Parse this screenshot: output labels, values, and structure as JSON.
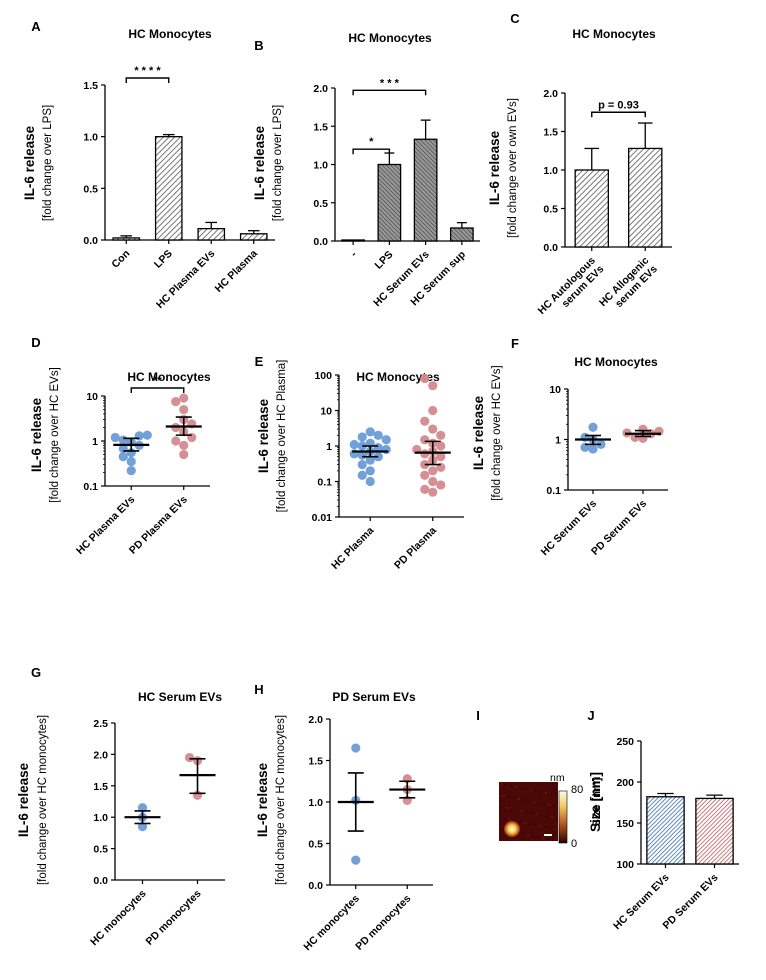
{
  "figure": {
    "panel_letters": [
      "A",
      "B",
      "C",
      "D",
      "E",
      "F",
      "G",
      "H",
      "I",
      "J"
    ]
  },
  "colors": {
    "blue": "#6a9bd6",
    "red": "#d48a8e",
    "gray": "#888888",
    "bar_edge": "#000000"
  },
  "chart_data": [
    {
      "panel": "A",
      "type": "bar",
      "pattern": "hatch",
      "title": "HC Monocytes",
      "ylabel": "IL-6 release",
      "ylabel_sub": "[fold change over LPS]",
      "categories": [
        "Con",
        "LPS",
        "HC Plasma EVs",
        "HC Plasma"
      ],
      "values": [
        0.02,
        1.0,
        0.11,
        0.06
      ],
      "errors": [
        0.02,
        0.02,
        0.06,
        0.03
      ],
      "ylim": [
        0,
        1.5
      ],
      "yticks": [
        "0.0",
        "0.5",
        "1.0",
        "1.5"
      ],
      "ytick_values": [
        0,
        0.5,
        1.0,
        1.5
      ],
      "annotations": [
        {
          "from": 0,
          "to": 1,
          "label": "* * * *"
        }
      ]
    },
    {
      "panel": "B",
      "type": "bar",
      "pattern": "hatch",
      "title": "HC Monocytes",
      "ylabel": "IL-6 release",
      "ylabel_sub": "[fold change over LPS]",
      "categories": [
        "-",
        "LPS",
        "HC Serum EVs",
        "HC Serum sup"
      ],
      "values": [
        0.0,
        1.0,
        1.33,
        0.17
      ],
      "errors": [
        0.01,
        0.15,
        0.25,
        0.07
      ],
      "ylim": [
        0,
        2.0
      ],
      "yticks": [
        "0.0",
        "0.5",
        "1.0",
        "1.5",
        "2.0"
      ],
      "ytick_values": [
        0,
        0.5,
        1.0,
        1.5,
        2.0
      ],
      "annotations": [
        {
          "from": 0,
          "to": 1,
          "label": "*"
        },
        {
          "from": 0,
          "to": 2,
          "label": "* * *"
        }
      ]
    },
    {
      "panel": "C",
      "type": "bar",
      "pattern": "hatch",
      "title": "HC Monocytes",
      "ylabel": "IL-6 release",
      "ylabel_sub": "[fold change over own EVs]",
      "categories": [
        "HC Autologous serum EVs",
        "HC Allogenic serum EVs"
      ],
      "category_lines": [
        [
          "HC Autologous",
          "serum EVs"
        ],
        [
          "HC Allogenic",
          "serum EVs"
        ]
      ],
      "values": [
        1.0,
        1.28
      ],
      "errors": [
        0.28,
        0.33
      ],
      "ylim": [
        0,
        2.0
      ],
      "yticks": [
        "0.0",
        "0.5",
        "1.0",
        "1.5",
        "2.0"
      ],
      "ytick_values": [
        0,
        0.5,
        1.0,
        1.5,
        2.0
      ],
      "annotations": [
        {
          "from": 0,
          "to": 1,
          "label": "p = 0.93"
        }
      ]
    },
    {
      "panel": "D",
      "type": "scatter",
      "scale": "log",
      "title": "HC Monocytes",
      "ylabel": "IL-6 release",
      "ylabel_sub": "[fold change over HC EVs]",
      "categories": [
        "HC Plasma EVs",
        "PD Plasma EVs"
      ],
      "ylim": [
        0.1,
        10
      ],
      "yticks": [
        "0.1",
        "1",
        "10"
      ],
      "ytick_values": [
        0.1,
        1,
        10
      ],
      "groups": [
        {
          "color": "blue",
          "mean": 0.82,
          "sem": [
            0.6,
            1.15
          ],
          "points": [
            0.22,
            0.35,
            0.45,
            0.55,
            0.68,
            0.8,
            0.95,
            1.05,
            1.2,
            1.3,
            1.35
          ]
        },
        {
          "color": "red",
          "mean": 2.1,
          "sem": [
            1.35,
            3.4
          ],
          "points": [
            0.5,
            0.8,
            1.0,
            1.2,
            1.6,
            2.0,
            2.4,
            3.0,
            5.0,
            7.5,
            9.0
          ]
        }
      ],
      "annotations": [
        {
          "from": 0,
          "to": 1,
          "label": "**"
        }
      ]
    },
    {
      "panel": "E",
      "type": "scatter",
      "scale": "log",
      "title": "HC Monocytes",
      "ylabel": "IL-6 release",
      "ylabel_sub": "[fold change over HC Plasma]",
      "categories": [
        "HC Plasma",
        "PD Plasma"
      ],
      "ylim": [
        0.01,
        100
      ],
      "yticks": [
        "0.01",
        "0.1",
        "1",
        "10",
        "100"
      ],
      "ytick_values": [
        0.01,
        0.1,
        1,
        10,
        100
      ],
      "groups": [
        {
          "color": "blue",
          "mean": 0.7,
          "sem": [
            0.5,
            1.0
          ],
          "points": [
            0.1,
            0.15,
            0.2,
            0.3,
            0.4,
            0.5,
            0.55,
            0.6,
            0.7,
            0.8,
            0.9,
            1.0,
            1.1,
            1.2,
            1.5,
            1.8,
            2.0,
            2.5
          ]
        },
        {
          "color": "red",
          "mean": 0.65,
          "sem": [
            0.3,
            1.35
          ],
          "points": [
            0.05,
            0.06,
            0.08,
            0.1,
            0.15,
            0.2,
            0.25,
            0.3,
            0.4,
            0.5,
            0.6,
            0.7,
            0.8,
            1.0,
            1.2,
            1.5,
            2.0,
            3.0,
            5.0,
            10.0,
            50.0,
            80.0
          ]
        }
      ],
      "annotations": []
    },
    {
      "panel": "F",
      "type": "scatter",
      "scale": "log",
      "title": "HC Monocytes",
      "ylabel": "IL-6 release",
      "ylabel_sub": "[fold change over HC EVs]",
      "categories": [
        "HC Serum EVs",
        "PD Serum EVs"
      ],
      "ylim": [
        0.1,
        10
      ],
      "yticks": [
        "0.1",
        "1",
        "10"
      ],
      "ytick_values": [
        0.1,
        1,
        10
      ],
      "groups": [
        {
          "color": "blue",
          "mean": 1.0,
          "sem": [
            0.8,
            1.2
          ],
          "points": [
            0.65,
            0.7,
            0.8,
            1.0,
            1.1,
            1.75
          ]
        },
        {
          "color": "red",
          "mean": 1.3,
          "sem": [
            1.15,
            1.5
          ],
          "points": [
            1.05,
            1.1,
            1.3,
            1.35,
            1.45,
            1.6
          ]
        }
      ],
      "annotations": []
    },
    {
      "panel": "G",
      "type": "scatter",
      "scale": "linear",
      "title": "HC Serum EVs",
      "ylabel": "IL-6 release",
      "ylabel_sub": "[fold change over HC monocytes]",
      "categories": [
        "HC monocytes",
        "PD monocytes"
      ],
      "ylim": [
        0,
        2.5
      ],
      "yticks": [
        "0.0",
        "0.5",
        "1.0",
        "1.5",
        "2.0",
        "2.5"
      ],
      "ytick_values": [
        0,
        0.5,
        1.0,
        1.5,
        2.0,
        2.5
      ],
      "groups": [
        {
          "color": "blue",
          "mean": 1.0,
          "sem": [
            0.9,
            1.1
          ],
          "points": [
            0.85,
            1.0,
            1.15
          ]
        },
        {
          "color": "red",
          "mean": 1.67,
          "sem": [
            1.38,
            1.93
          ],
          "points": [
            1.35,
            1.9,
            1.95
          ]
        }
      ],
      "annotations": []
    },
    {
      "panel": "H",
      "type": "scatter",
      "scale": "linear",
      "title": "PD Serum EVs",
      "ylabel": "IL-6 release",
      "ylabel_sub": "[fold change over HC monocytes]",
      "categories": [
        "HC monocytes",
        "PD monocytes"
      ],
      "ylim": [
        0,
        2.0
      ],
      "yticks": [
        "0.0",
        "0.5",
        "1.0",
        "1.5",
        "2.0"
      ],
      "ytick_values": [
        0,
        0.5,
        1.0,
        1.5,
        2.0
      ],
      "groups": [
        {
          "color": "blue",
          "mean": 1.0,
          "sem": [
            0.65,
            1.35
          ],
          "points": [
            0.3,
            1.02,
            1.65
          ]
        },
        {
          "color": "red",
          "mean": 1.15,
          "sem": [
            1.05,
            1.25
          ],
          "points": [
            1.02,
            1.15,
            1.28
          ]
        }
      ],
      "annotations": []
    },
    {
      "panel": "I",
      "type": "heatmap",
      "colorbar_unit": "nm",
      "colorbar_ticks": [
        "80",
        "0"
      ]
    },
    {
      "panel": "J",
      "type": "bar",
      "pattern": "hatch-colored",
      "title": "",
      "ylabel": "Size [nm]",
      "ylabel_sub": "",
      "categories": [
        "HC Serum EVs",
        "PD Serum EVs"
      ],
      "bar_colors": [
        "blue",
        "red"
      ],
      "values": [
        182,
        180
      ],
      "errors": [
        4,
        4
      ],
      "ylim": [
        100,
        250
      ],
      "yticks": [
        "100",
        "150",
        "200",
        "250"
      ],
      "ytick_values": [
        100,
        150,
        200,
        250
      ],
      "annotations": []
    }
  ]
}
